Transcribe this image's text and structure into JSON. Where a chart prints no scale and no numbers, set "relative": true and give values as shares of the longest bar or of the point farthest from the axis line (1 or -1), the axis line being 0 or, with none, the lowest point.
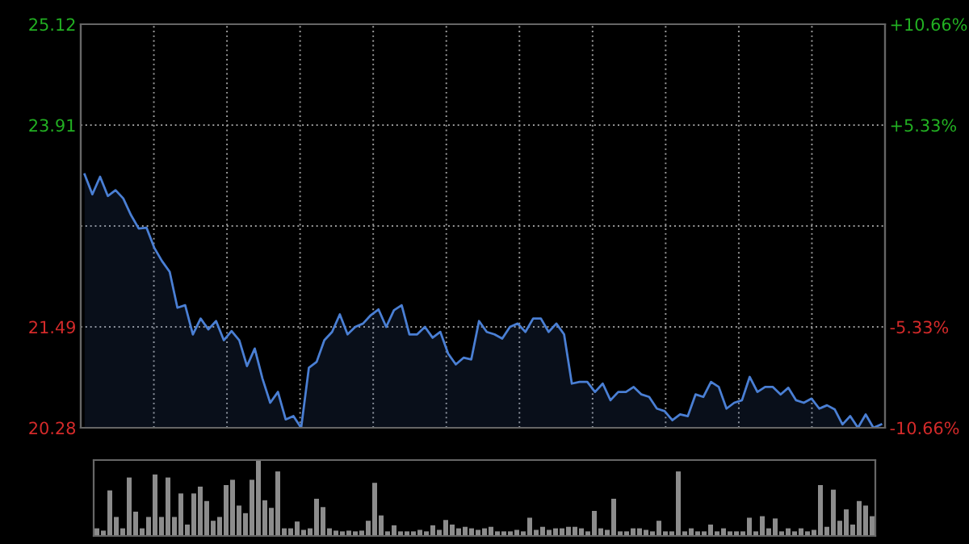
{
  "chart_data": [
    {
      "type": "area",
      "categories": [
        null,
        null,
        null,
        null,
        null,
        null,
        null,
        null,
        null,
        null,
        null,
        null,
        null,
        null,
        null,
        null,
        null,
        null,
        null,
        null,
        null,
        null,
        null,
        null,
        null,
        null,
        null,
        null,
        null,
        null,
        null,
        null,
        null,
        null,
        null,
        null,
        null,
        null,
        null,
        null,
        null,
        null,
        null,
        null,
        null,
        null,
        null,
        null,
        null,
        null,
        null,
        null,
        null,
        null,
        null,
        null,
        null,
        null,
        null,
        null,
        null,
        null,
        null,
        null,
        null,
        null,
        null,
        null,
        null,
        null,
        null,
        null,
        null,
        null,
        null,
        null,
        null,
        null,
        null,
        null,
        null,
        null,
        null,
        null,
        null,
        null,
        null,
        null,
        null,
        null,
        null,
        null,
        null,
        null,
        null,
        null,
        null,
        null,
        null,
        null,
        null,
        null,
        null,
        null
      ],
      "series": [
        {
          "color": "#4a7fd4",
          "values": [
            23.32,
            23.08,
            23.29,
            23.06,
            23.13,
            23.03,
            22.83,
            22.67,
            22.68,
            22.44,
            22.28,
            22.15,
            21.72,
            21.75,
            21.4,
            21.59,
            21.46,
            21.56,
            21.33,
            21.44,
            21.33,
            21.02,
            21.23,
            20.87,
            20.58,
            20.71,
            20.38,
            20.42,
            20.28,
            21.0,
            21.07,
            21.33,
            21.43,
            21.64,
            21.4,
            21.49,
            21.53,
            21.63,
            21.7,
            21.49,
            21.69,
            21.75,
            21.4,
            21.4,
            21.49,
            21.36,
            21.43,
            21.17,
            21.04,
            21.12,
            21.1,
            21.56,
            21.43,
            21.4,
            21.35,
            21.49,
            21.53,
            21.43,
            21.59,
            21.59,
            21.43,
            21.53,
            21.4,
            20.81,
            20.83,
            20.83,
            20.71,
            20.81,
            20.61,
            20.71,
            20.71,
            20.77,
            20.68,
            20.65,
            20.51,
            20.48,
            20.37,
            20.44,
            20.42,
            20.68,
            20.65,
            20.83,
            20.77,
            20.51,
            20.58,
            20.61,
            20.89,
            20.71,
            20.77,
            20.77,
            20.68,
            20.76,
            20.61,
            20.58,
            20.63,
            20.51,
            20.55,
            20.5,
            20.32,
            20.42,
            20.28,
            20.44,
            20.28,
            20.32
          ]
        }
      ],
      "ylim": [
        20.28,
        25.12
      ],
      "yticks": [
        20.28,
        21.49,
        {
          "value": 22.7,
          "label": null
        },
        23.91,
        25.12
      ],
      "y2lim": [
        -10.66,
        10.66
      ],
      "y2ticks": [
        {
          "value": -10.66,
          "label": "-10.66%"
        },
        {
          "value": -5.33,
          "label": "-5.33%"
        },
        {
          "value": 5.33,
          "label": "+5.33%"
        },
        {
          "value": 10.66,
          "label": "+10.66%"
        }
      ],
      "grid": true,
      "legend": false
    },
    {
      "type": "bar",
      "relative": true,
      "color": "#8c8c8c",
      "categories": [
        null,
        null,
        null,
        null,
        null,
        null,
        null,
        null,
        null,
        null,
        null,
        null,
        null,
        null,
        null,
        null,
        null,
        null,
        null,
        null,
        null,
        null,
        null,
        null,
        null,
        null,
        null,
        null,
        null,
        null,
        null,
        null,
        null,
        null,
        null,
        null,
        null,
        null,
        null,
        null,
        null,
        null,
        null,
        null,
        null,
        null,
        null,
        null,
        null,
        null,
        null,
        null,
        null,
        null,
        null,
        null,
        null,
        null,
        null,
        null,
        null,
        null,
        null,
        null,
        null,
        null,
        null,
        null,
        null,
        null,
        null,
        null,
        null,
        null,
        null,
        null,
        null,
        null,
        null,
        null,
        null,
        null,
        null,
        null,
        null,
        null,
        null,
        null,
        null,
        null,
        null,
        null,
        null,
        null,
        null,
        null,
        null,
        null,
        null,
        null,
        null,
        null,
        null,
        null,
        null,
        null,
        null,
        null,
        null,
        null,
        null,
        null,
        null,
        null,
        null,
        null,
        null,
        null,
        null,
        null,
        null
      ],
      "values": [
        0.1,
        0.07,
        0.6,
        0.25,
        0.1,
        0.77,
        0.32,
        0.1,
        0.25,
        0.81,
        0.25,
        0.77,
        0.25,
        0.56,
        0.15,
        0.56,
        0.65,
        0.46,
        0.2,
        0.25,
        0.67,
        0.74,
        0.4,
        0.3,
        0.74,
        1.0,
        0.47,
        0.37,
        0.85,
        0.1,
        0.1,
        0.19,
        0.08,
        0.1,
        0.49,
        0.38,
        0.1,
        0.07,
        0.06,
        0.07,
        0.06,
        0.07,
        0.2,
        0.7,
        0.27,
        0.06,
        0.14,
        0.06,
        0.06,
        0.06,
        0.08,
        0.06,
        0.14,
        0.08,
        0.21,
        0.15,
        0.1,
        0.12,
        0.1,
        0.08,
        0.1,
        0.12,
        0.06,
        0.06,
        0.06,
        0.08,
        0.06,
        0.24,
        0.08,
        0.12,
        0.08,
        0.1,
        0.1,
        0.12,
        0.12,
        0.1,
        0.06,
        0.33,
        0.1,
        0.08,
        0.49,
        0.06,
        0.06,
        0.1,
        0.1,
        0.08,
        0.06,
        0.2,
        0.06,
        0.06,
        0.85,
        0.06,
        0.1,
        0.06,
        0.06,
        0.15,
        0.06,
        0.1,
        0.06,
        0.06,
        0.06,
        0.24,
        0.06,
        0.26,
        0.1,
        0.23,
        0.06,
        0.1,
        0.06,
        0.1,
        0.06,
        0.08,
        0.67,
        0.12,
        0.61,
        0.2,
        0.35,
        0.15,
        0.46,
        0.4,
        0.26
      ]
    }
  ]
}
